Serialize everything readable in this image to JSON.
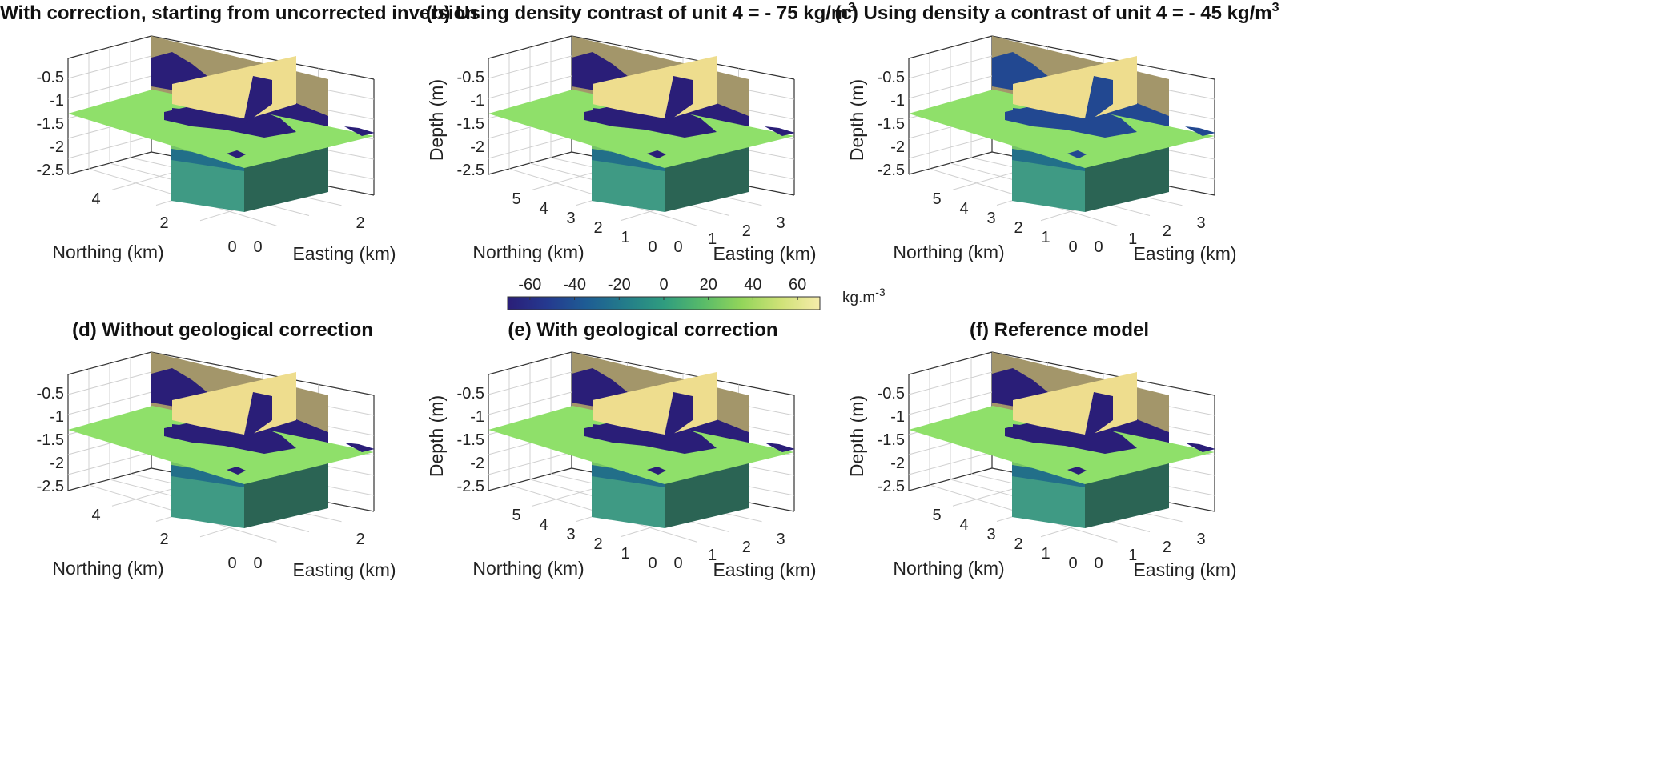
{
  "colorbar": {
    "ticks": [
      -60,
      -40,
      -20,
      0,
      20,
      40,
      60
    ],
    "range": [
      -70,
      70
    ],
    "unit": "kg.m",
    "unit_sup": "-3",
    "colormap": [
      "#2a1e78",
      "#25398f",
      "#1e5c94",
      "#237c8a",
      "#2f9c7f",
      "#58bb69",
      "#93d55a",
      "#cfe277",
      "#f6ecaa"
    ]
  },
  "colors": {
    "deep_blue": "#1c1c80",
    "navy_dark": "#161552",
    "teal_blue": "#12558c",
    "green_slice": "#8fe06a",
    "yellow_slice": "#eedd8e",
    "olive_slice": "#a3966a",
    "teal_lower": "#3f9a84",
    "dark_lower": "#2b6454"
  },
  "chart_data": [
    {
      "panel": "a",
      "type": "heatmap",
      "title": "(a) With correction, starting from uncorrected inversion",
      "title_sup": "",
      "zlabel": "",
      "xlabel": "Northing (km)",
      "ylabel": "Easting (km)",
      "z_ticks": [
        -0.5,
        -1,
        -1.5,
        -2,
        -2.5
      ],
      "northing_ticks": [
        0,
        2,
        4
      ],
      "easting_ticks": [
        0,
        2
      ],
      "anomaly_value": -70,
      "background_value": 30,
      "upper_value": 60
    },
    {
      "panel": "b",
      "type": "heatmap",
      "title": "(b) Using density contrast of unit 4 = - 75 kg/m",
      "title_sup": "3",
      "zlabel": "Depth (m)",
      "xlabel": "Northing (km)",
      "ylabel": "Easting (km)",
      "z_ticks": [
        -0.5,
        -1,
        -1.5,
        -2,
        -2.5
      ],
      "northing_ticks": [
        0,
        1,
        2,
        3,
        4,
        5
      ],
      "easting_ticks": [
        0,
        1,
        2,
        3
      ],
      "anomaly_value": -75,
      "background_value": 30,
      "upper_value": 60
    },
    {
      "panel": "c",
      "type": "heatmap",
      "title": "(c) Using density a contrast of unit 4 = - 45 kg/m",
      "title_sup": "3",
      "zlabel": "Depth (m)",
      "xlabel": "Northing (km)",
      "ylabel": "Easting (km)",
      "z_ticks": [
        -0.5,
        -1,
        -1.5,
        -2,
        -2.5
      ],
      "northing_ticks": [
        0,
        1,
        2,
        3,
        4,
        5
      ],
      "easting_ticks": [
        0,
        1,
        2,
        3
      ],
      "anomaly_value": -45,
      "background_value": 30,
      "upper_value": 60
    },
    {
      "panel": "d",
      "type": "heatmap",
      "title": "(d) Without geological correction",
      "title_sup": "",
      "zlabel": "",
      "xlabel": "Northing (km)",
      "ylabel": "Easting (km)",
      "z_ticks": [
        -0.5,
        -1,
        -1.5,
        -2,
        -2.5
      ],
      "northing_ticks": [
        0,
        2,
        4
      ],
      "easting_ticks": [
        0,
        2
      ],
      "anomaly_value": -70,
      "background_value": 30,
      "upper_value": 60
    },
    {
      "panel": "e",
      "type": "heatmap",
      "title": "(e) With geological correction",
      "title_sup": "",
      "zlabel": "Depth (m)",
      "xlabel": "Northing (km)",
      "ylabel": "Easting (km)",
      "z_ticks": [
        -0.5,
        -1,
        -1.5,
        -2,
        -2.5
      ],
      "northing_ticks": [
        0,
        1,
        2,
        3,
        4,
        5
      ],
      "easting_ticks": [
        0,
        1,
        2,
        3
      ],
      "anomaly_value": -70,
      "background_value": 30,
      "upper_value": 60
    },
    {
      "panel": "f",
      "type": "heatmap",
      "title": "(f) Reference model",
      "title_sup": "",
      "zlabel": "Depth (m)",
      "xlabel": "Northing (km)",
      "ylabel": "Easting (km)",
      "z_ticks": [
        -0.5,
        -1,
        -1.5,
        -2,
        -2.5
      ],
      "northing_ticks": [
        0,
        1,
        2,
        3,
        4,
        5
      ],
      "easting_ticks": [
        0,
        1,
        2,
        3
      ],
      "anomaly_value": -70,
      "background_value": 30,
      "upper_value": 60
    }
  ]
}
